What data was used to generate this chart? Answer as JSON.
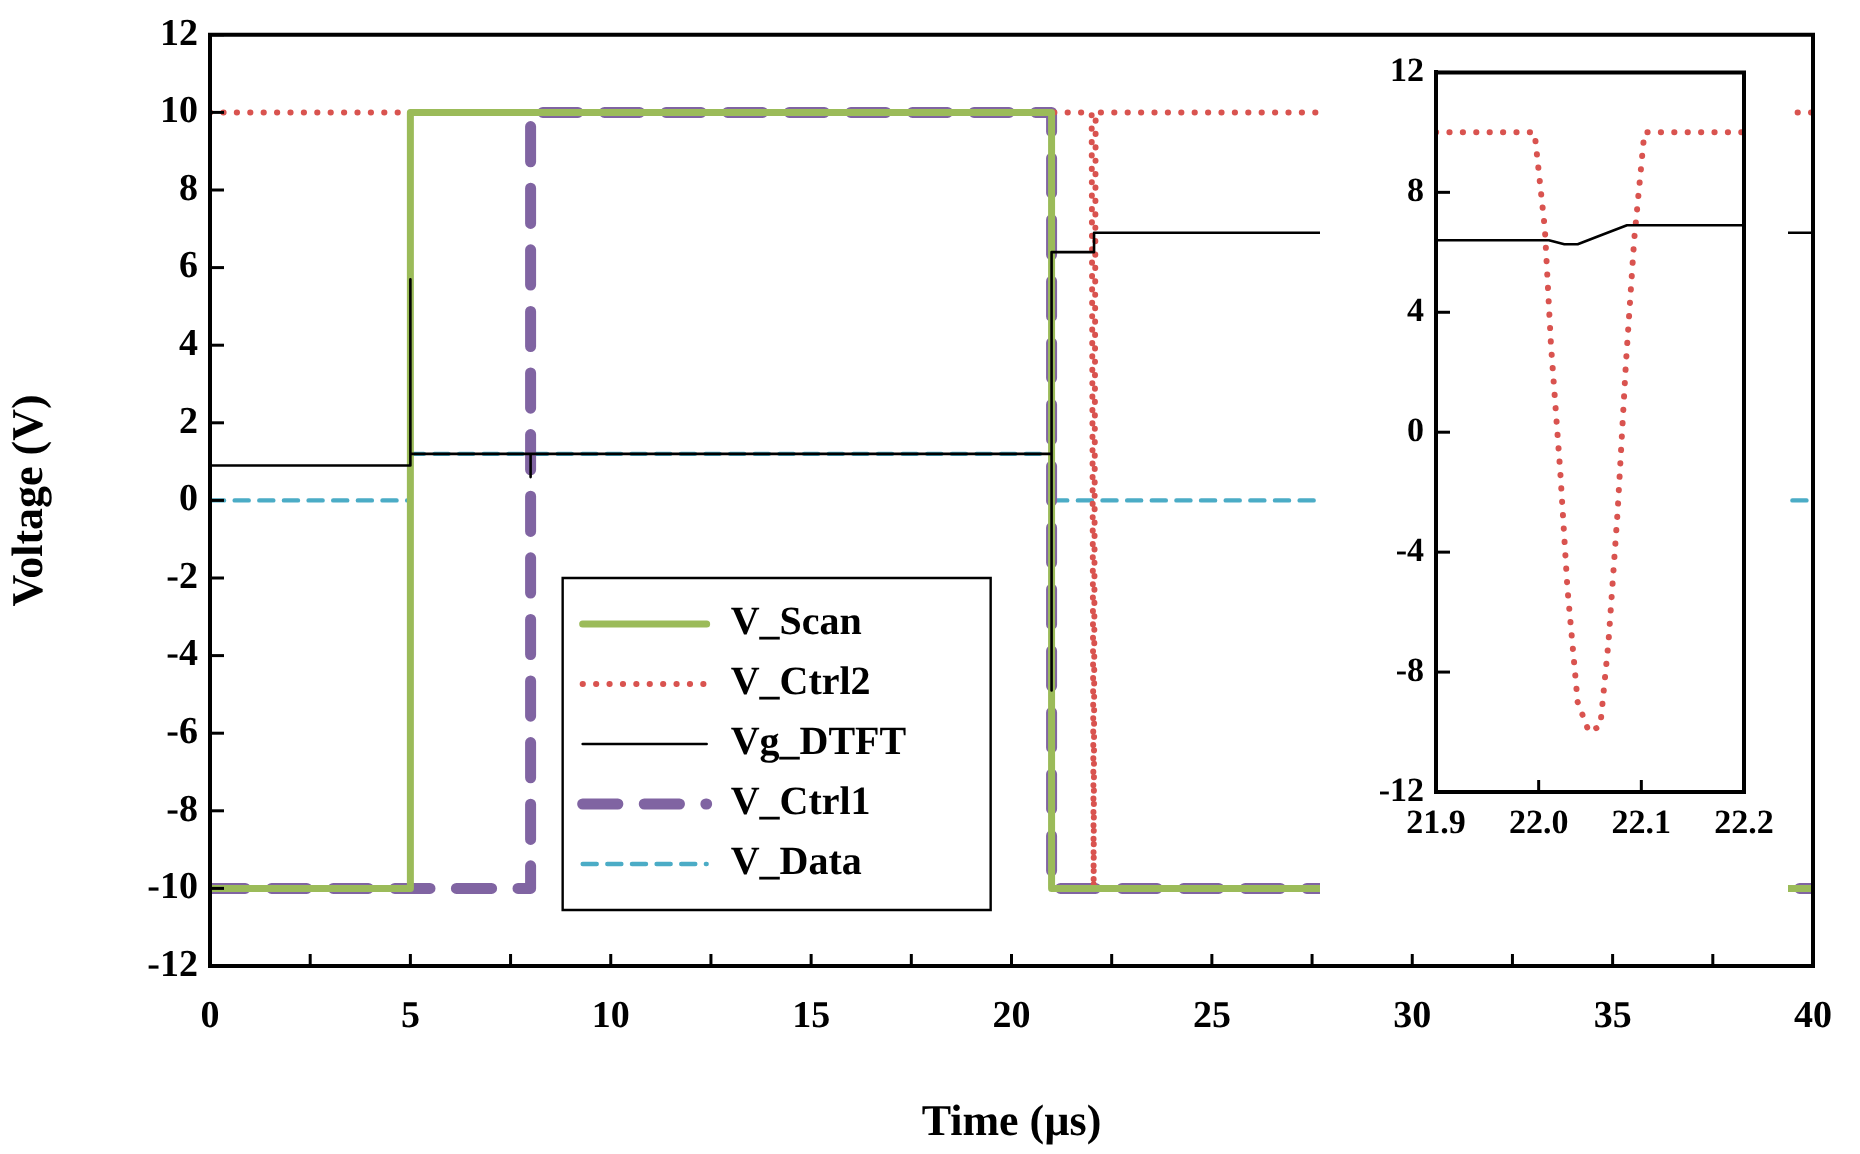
{
  "chart_data": [
    {
      "type": "line",
      "xlabel": "Time (µs)",
      "ylabel": "Voltage (V)",
      "xlim": [
        0,
        40
      ],
      "ylim": [
        -12,
        12
      ],
      "xticks": [
        0,
        {
          "value": 2.5,
          "label": null
        },
        5,
        {
          "value": 7.5,
          "label": null
        },
        10,
        {
          "value": 12.5,
          "label": null
        },
        15,
        {
          "value": 17.5,
          "label": null
        },
        20,
        {
          "value": 22.5,
          "label": null
        },
        25,
        {
          "value": 27.5,
          "label": null
        },
        30,
        {
          "value": 32.5,
          "label": null
        },
        35,
        {
          "value": 37.5,
          "label": null
        },
        40
      ],
      "yticks": [
        -12,
        -10,
        -8,
        -6,
        -4,
        -2,
        0,
        2,
        4,
        6,
        8,
        10,
        12
      ],
      "grid": false,
      "legend": "bottom left",
      "marker": "none",
      "series": [
        {
          "name": "V_Scan",
          "color": "#9bbb59",
          "line_style": "solid",
          "x": [
            0,
            5,
            5,
            21,
            21,
            40
          ],
          "values": [
            -10,
            -10,
            10,
            10,
            -10,
            -10
          ]
        },
        {
          "name": "V_Ctrl2",
          "color": "#d9534f",
          "line_style": "dotted",
          "x": [
            0,
            22.0,
            22.05,
            22.1,
            40
          ],
          "values": [
            10,
            10,
            -10,
            10,
            10
          ]
        },
        {
          "name": "Vg_DTFT",
          "color": "#000000",
          "line_style": "solid",
          "x": [
            0,
            5,
            5,
            5,
            8,
            8,
            8,
            21,
            21,
            21,
            22.06,
            22.06,
            40
          ],
          "values": [
            0.9,
            0.9,
            5.7,
            1.2,
            1.2,
            0.6,
            1.2,
            1.2,
            -4.9,
            6.4,
            6.4,
            6.9,
            6.9
          ]
        },
        {
          "name": "V_Ctrl1",
          "color": "#8064a2",
          "line_style": "dashed",
          "x": [
            0,
            8,
            8,
            21,
            21,
            40
          ],
          "values": [
            -10,
            -10,
            10,
            10,
            -10,
            -10
          ]
        },
        {
          "name": "V_Data",
          "color": "#4bacc6",
          "line_style": "dashed",
          "x": [
            0,
            5,
            5,
            21,
            21,
            40
          ],
          "values": [
            0,
            0,
            1.2,
            1.2,
            0,
            0
          ]
        }
      ]
    },
    {
      "type": "line",
      "xlim": [
        21.9,
        22.2
      ],
      "ylim": [
        -12,
        12
      ],
      "xticks": [
        21.9,
        {
          "value": 22.0,
          "label": "22.0"
        },
        22.1,
        22.2
      ],
      "yticks": [
        -12,
        -8,
        -4,
        0,
        4,
        8,
        12
      ],
      "grid": false,
      "marker": "none",
      "series": [
        {
          "color": "#d9534f",
          "line_style": "dotted",
          "x": [
            21.9,
            21.996,
            22.006,
            22.012,
            22.021,
            22.028,
            22.038,
            22.049,
            22.06,
            22.068,
            22.077,
            22.085,
            22.093,
            22.103,
            22.2
          ],
          "values": [
            10,
            10,
            6.8,
            2.9,
            -1.3,
            -5.2,
            -9,
            -10,
            -9.8,
            -7,
            -2.6,
            2.3,
            6.4,
            10,
            10
          ]
        },
        {
          "color": "#000000",
          "line_style": "solid",
          "x": [
            21.9,
            22.01,
            22.025,
            22.038,
            22.06,
            22.086,
            22.2
          ],
          "values": [
            6.4,
            6.4,
            6.27,
            6.27,
            6.56,
            6.9,
            6.9
          ]
        }
      ]
    }
  ]
}
